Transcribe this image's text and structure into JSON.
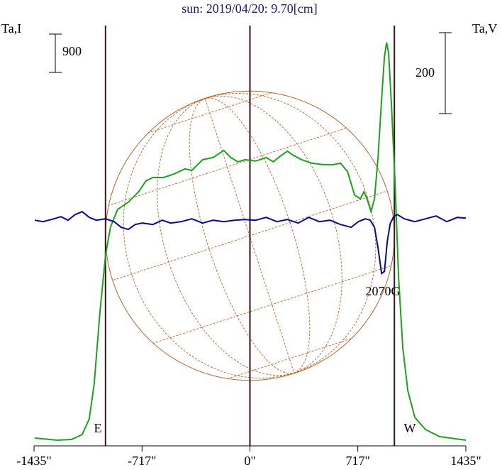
{
  "chart_data": {
    "type": "line",
    "title": "sun: 2019/04/20: 9.70[cm]",
    "ylabel": "Ta,I",
    "y2label": "Ta,V",
    "xlim": [
      -1435,
      1435
    ],
    "xticks": [
      {
        "value": -1435,
        "label": "-1435\""
      },
      {
        "value": -717,
        "label": "-717\""
      },
      {
        "value": 0,
        "label": "0\""
      },
      {
        "value": 717,
        "label": "717\""
      },
      {
        "value": 1435,
        "label": "1435\""
      }
    ],
    "ylim": [
      -167,
      9800
    ],
    "y2lim": [
      -561,
      488
    ],
    "scale_bars": [
      900,
      200
    ],
    "vertical_lines": [
      -960,
      0,
      960
    ],
    "disk_radius": 960,
    "limb_labels": [
      "E",
      "W"
    ],
    "annotation": "2070G",
    "series": [
      {
        "name": "I",
        "color": "#1ca21c",
        "x": [
          -1430,
          -1280,
          -1186,
          -1115,
          -1068,
          -1035,
          -997,
          -960,
          -927,
          -880,
          -809,
          -739,
          -692,
          -645,
          -574,
          -503,
          -433,
          -386,
          -315,
          -245,
          -174,
          -127,
          -80,
          -33,
          38,
          108,
          155,
          202,
          249,
          282,
          343,
          414,
          485,
          555,
          602,
          649,
          696,
          734,
          758,
          781,
          805,
          828,
          852,
          875,
          894,
          908,
          922,
          941,
          965,
          988,
          1016,
          1049,
          1096,
          1167,
          1261,
          1435
        ],
        "values": [
          17,
          -33,
          -17,
          100,
          467,
          1300,
          2967,
          4300,
          4967,
          5384,
          5551,
          5801,
          6051,
          6134,
          6134,
          6218,
          6335,
          6301,
          6551,
          6601,
          6768,
          6601,
          6501,
          6551,
          6518,
          6601,
          6501,
          6635,
          6751,
          6668,
          6551,
          6468,
          6435,
          6435,
          6468,
          6268,
          5718,
          5634,
          5801,
          5601,
          5334,
          5634,
          6635,
          7968,
          8968,
          9302,
          9052,
          7801,
          5968,
          3801,
          2134,
          1134,
          500,
          217,
          50,
          -33
        ]
      },
      {
        "name": "V",
        "color": "#0a0a8c",
        "axis": "y2",
        "x": [
          -1430,
          -1374,
          -1303,
          -1256,
          -1209,
          -1162,
          -1115,
          -1068,
          -1021,
          -960,
          -903,
          -856,
          -809,
          -762,
          -715,
          -645,
          -583,
          -527,
          -456,
          -386,
          -315,
          -245,
          -174,
          -104,
          -33,
          38,
          108,
          179,
          249,
          320,
          391,
          461,
          532,
          602,
          673,
          720,
          767,
          800,
          828,
          852,
          875,
          894,
          913,
          932,
          955,
          979,
          1026,
          1096,
          1167,
          1237,
          1308,
          1379,
          1435
        ],
        "values": [
          -3.5,
          -7,
          0,
          5.3,
          -3.5,
          10.5,
          17.5,
          3.5,
          -3.5,
          0,
          -7,
          -21,
          -26.3,
          -14,
          -10.5,
          -14,
          -3.5,
          -10.5,
          -7,
          0,
          -10.5,
          -3.5,
          -7,
          -3.5,
          -1.8,
          -3.5,
          3.5,
          -7,
          -1.8,
          -10.5,
          3.5,
          -7,
          -3.5,
          -14,
          -21,
          -7,
          0,
          -3.5,
          -21,
          -73.7,
          -135,
          -130,
          -56,
          -12.3,
          5.3,
          10.5,
          0,
          -7,
          0,
          7,
          -7,
          3.5,
          1.8
        ]
      }
    ]
  }
}
